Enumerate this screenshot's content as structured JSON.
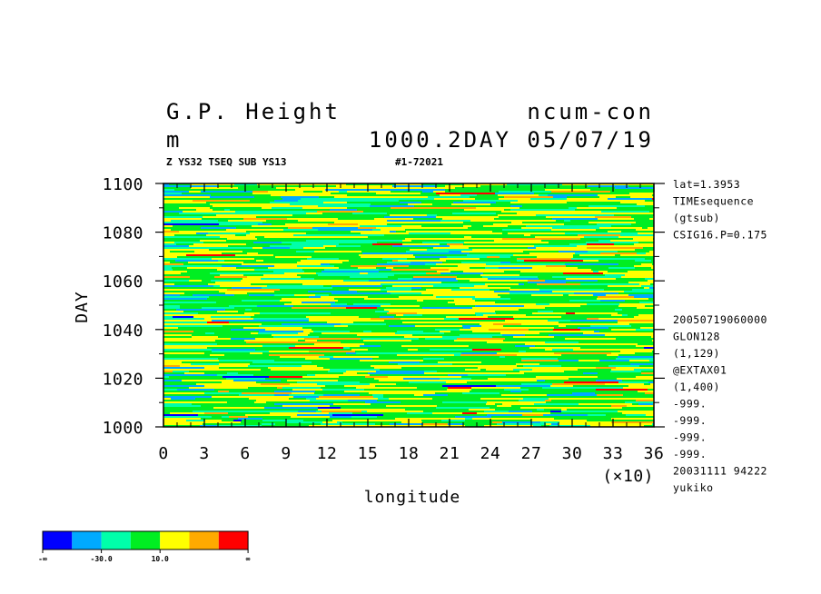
{
  "header": {
    "title_left": "G.P. Height",
    "title_right": "ncum-con",
    "units": "m",
    "level_info": "1000.2DAY 05/07/19",
    "sub_left": "Z YS32 TSEQ SUB YS13",
    "sub_right": "#1-72021"
  },
  "side_info": {
    "top": [
      "lat=1.3953",
      "TIMEsequence",
      "(gtsub)",
      "CSIG16.P=0.175"
    ],
    "bottom": [
      "20050719060000",
      "GLON128",
      "(1,129)",
      "@EXTAX01",
      "(1,400)",
      "-999.",
      "-999.",
      "-999.",
      "-999.",
      "20031111  94222",
      "yukiko"
    ]
  },
  "colorbar": {
    "colors": [
      "#0000ff",
      "#00aaff",
      "#00ffaa",
      "#00ee22",
      "#ffff00",
      "#ffaa00",
      "#ff0000"
    ],
    "labels": [
      "-∞",
      "-30.0",
      "10.0",
      "∞"
    ]
  },
  "chart_data": {
    "type": "heatmap",
    "title": "G.P. Height",
    "xlabel": "longitude",
    "ylabel": "DAY",
    "x_multiplier": "(×10)",
    "x_ticks": [
      "0",
      "3",
      "6",
      "9",
      "12",
      "15",
      "18",
      "21",
      "24",
      "27",
      "30",
      "33",
      "36"
    ],
    "y_ticks": [
      "1000",
      "1020",
      "1040",
      "1060",
      "1080",
      "1100"
    ],
    "xlim": [
      0,
      36
    ],
    "ylim": [
      1000,
      1100
    ],
    "dominant_levels": [
      "green",
      "yellow",
      "cyan"
    ]
  }
}
